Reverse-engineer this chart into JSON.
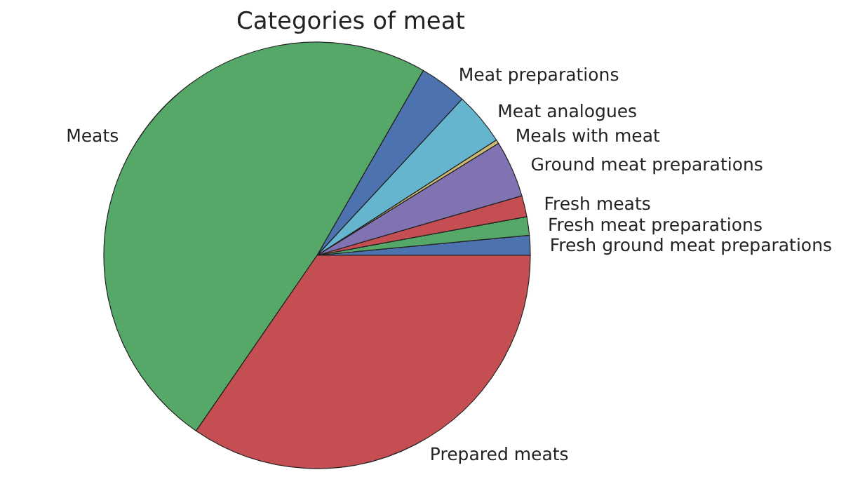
{
  "chart_data": {
    "type": "pie",
    "title": "Categories of meat",
    "categories": [
      "Fresh ground meat preparations",
      "Fresh meat preparations",
      "Fresh meats",
      "Ground meat preparations",
      "Meals with meat",
      "Meat analogues",
      "Meat preparations",
      "Meats",
      "Prepared meats"
    ],
    "values": [
      1.5,
      1.4,
      1.6,
      4.3,
      0.3,
      4.0,
      3.6,
      48.7,
      34.6
    ],
    "colors": [
      "#4c72b0",
      "#55a868",
      "#c44e52",
      "#8172b2",
      "#ccb974",
      "#64b5cd",
      "#4c72b0",
      "#55a868",
      "#c44e52"
    ]
  }
}
